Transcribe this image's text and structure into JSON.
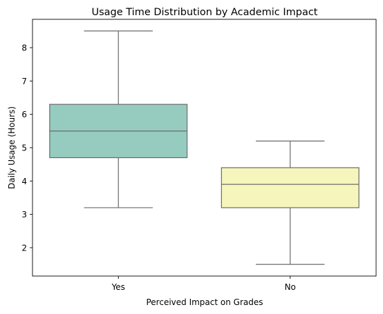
{
  "chart_data": {
    "type": "box",
    "title": "Usage Time Distribution by Academic Impact",
    "xlabel": "Perceived Impact on Grades",
    "ylabel": "Daily Usage (Hours)",
    "categories": [
      "Yes",
      "No"
    ],
    "boxes": [
      {
        "category": "Yes",
        "whisker_low": 3.2,
        "q1": 4.7,
        "median": 5.5,
        "q3": 6.3,
        "whisker_high": 8.5,
        "color": "#96cbc0"
      },
      {
        "category": "No",
        "whisker_low": 1.5,
        "q1": 3.2,
        "median": 3.9,
        "q3": 4.4,
        "whisker_high": 5.2,
        "color": "#f6f6bc"
      }
    ],
    "yticks": [
      2,
      3,
      4,
      5,
      6,
      7,
      8
    ],
    "ylim": [
      1.15,
      8.85
    ],
    "grid": false,
    "legend": "none",
    "line_color": "#6a6a6a"
  }
}
